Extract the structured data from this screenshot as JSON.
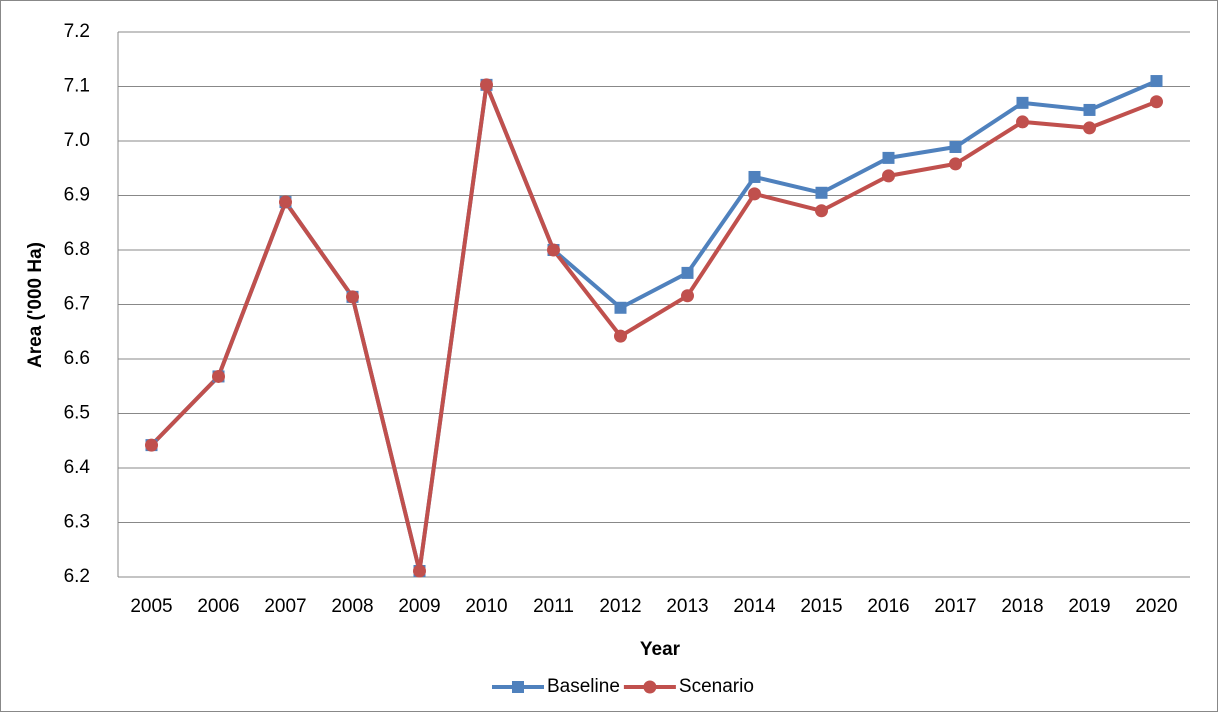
{
  "chart_data": {
    "type": "line",
    "x_label": "Year",
    "y_label": "Area ('000 Ha)",
    "categories": [
      "2005",
      "2006",
      "2007",
      "2008",
      "2009",
      "2010",
      "2011",
      "2012",
      "2013",
      "2014",
      "2015",
      "2016",
      "2017",
      "2018",
      "2019",
      "2020"
    ],
    "series": [
      {
        "name": "Baseline",
        "color": "#4f81bd",
        "marker": "square",
        "values": [
          6.442,
          6.568,
          6.888,
          6.714,
          6.211,
          7.103,
          6.8,
          6.694,
          6.758,
          6.934,
          6.905,
          6.969,
          6.989,
          7.07,
          7.057,
          7.11
        ]
      },
      {
        "name": "Scenario",
        "color": "#c0504d",
        "marker": "circle",
        "values": [
          6.442,
          6.568,
          6.888,
          6.714,
          6.211,
          7.103,
          6.8,
          6.642,
          6.716,
          6.903,
          6.872,
          6.936,
          6.958,
          7.035,
          7.024,
          7.072
        ]
      }
    ],
    "ylim": [
      6.2,
      7.2
    ],
    "yticks": [
      6.2,
      6.3,
      6.4,
      6.5,
      6.6,
      6.7,
      6.8,
      6.9,
      {
        "value": 7,
        "label": "7.0"
      },
      7.1,
      7.2
    ],
    "grid": true,
    "legend": "bottom"
  }
}
